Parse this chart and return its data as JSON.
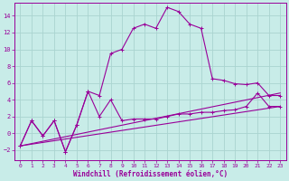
{
  "xlabel": "Windchill (Refroidissement éolien,°C)",
  "xlim": [
    -0.5,
    23.5
  ],
  "ylim": [
    -3.2,
    15.5
  ],
  "xticks": [
    0,
    1,
    2,
    3,
    4,
    5,
    6,
    7,
    8,
    9,
    10,
    11,
    12,
    13,
    14,
    15,
    16,
    17,
    18,
    19,
    20,
    21,
    22,
    23
  ],
  "yticks": [
    -2,
    0,
    2,
    4,
    6,
    8,
    10,
    12,
    14
  ],
  "background_color": "#c8ece8",
  "grid_color": "#aad4d0",
  "line_color": "#990099",
  "curve_x": [
    0,
    1,
    2,
    3,
    4,
    5,
    6,
    7,
    8,
    9,
    10,
    11,
    12,
    13,
    14,
    15,
    16,
    17,
    18,
    19,
    20,
    21,
    22,
    23
  ],
  "curve_y": [
    -1.5,
    1.5,
    -0.3,
    1.5,
    -2.2,
    1.0,
    5.0,
    4.5,
    9.5,
    10.0,
    12.5,
    13.0,
    12.5,
    15.0,
    14.5,
    13.0,
    12.5,
    6.5,
    6.3,
    5.9,
    5.8,
    6.0,
    4.5,
    4.5
  ],
  "zigzag_x": [
    0,
    1,
    2,
    3,
    4,
    5,
    6,
    7,
    8,
    9,
    10,
    11,
    12,
    13,
    14,
    15,
    16,
    17,
    18,
    19,
    20,
    21,
    22,
    23
  ],
  "zigzag_y": [
    -1.5,
    1.5,
    -0.3,
    1.5,
    -2.2,
    1.0,
    5.0,
    2.0,
    4.0,
    1.5,
    1.7,
    1.7,
    1.7,
    2.0,
    2.3,
    2.3,
    2.5,
    2.5,
    2.7,
    2.8,
    3.2,
    4.8,
    3.2,
    3.2
  ],
  "line3_x": [
    0,
    23
  ],
  "line3_y": [
    -1.5,
    4.8
  ],
  "line4_x": [
    0,
    23
  ],
  "line4_y": [
    -1.5,
    3.2
  ]
}
